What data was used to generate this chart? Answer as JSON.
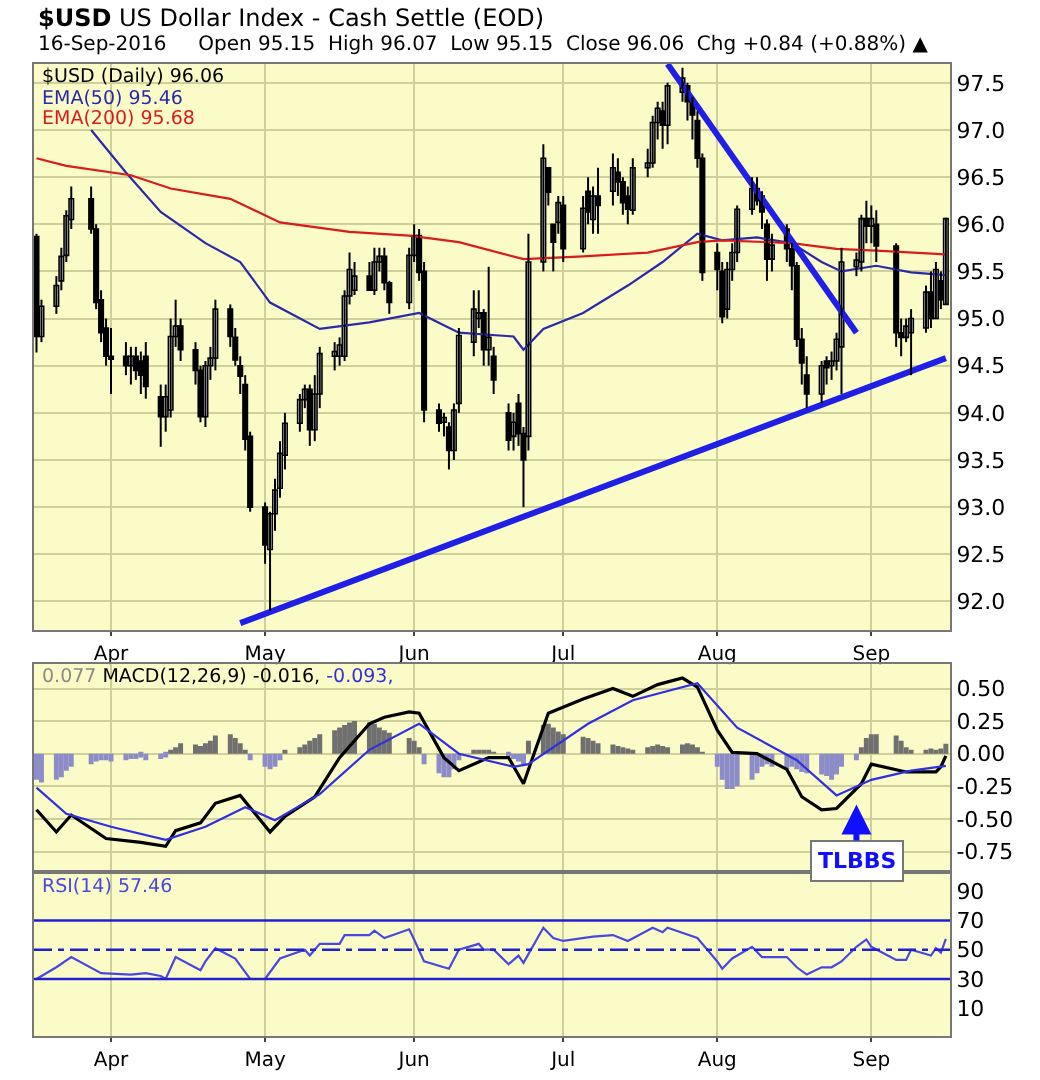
{
  "chart_data": [
    {
      "type": "candlestick",
      "title": "$USD US Dollar Index - Cash Settle (EOD)",
      "subtitle": "16-Sep-2016     Open 95.15  High 96.07  Low 95.15  Close 96.06  Chg +0.84 (+0.88%) ▲",
      "x": [
        "2016-03-17",
        "2016-03-18",
        "2016-03-21",
        "2016-03-22",
        "2016-03-23",
        "2016-03-24",
        "2016-03-28",
        "2016-03-29",
        "2016-03-30",
        "2016-03-31",
        "2016-04-01",
        "2016-04-04",
        "2016-04-05",
        "2016-04-06",
        "2016-04-07",
        "2016-04-08",
        "2016-04-11",
        "2016-04-12",
        "2016-04-13",
        "2016-04-14",
        "2016-04-15",
        "2016-04-18",
        "2016-04-19",
        "2016-04-20",
        "2016-04-21",
        "2016-04-22",
        "2016-04-25",
        "2016-04-26",
        "2016-04-27",
        "2016-04-28",
        "2016-04-29",
        "2016-05-02",
        "2016-05-03",
        "2016-05-04",
        "2016-05-05",
        "2016-05-06",
        "2016-05-09",
        "2016-05-10",
        "2016-05-11",
        "2016-05-12",
        "2016-05-13",
        "2016-05-16",
        "2016-05-17",
        "2016-05-18",
        "2016-05-19",
        "2016-05-20",
        "2016-05-23",
        "2016-05-24",
        "2016-05-25",
        "2016-05-26",
        "2016-05-27",
        "2016-05-31",
        "2016-06-01",
        "2016-06-02",
        "2016-06-03",
        "2016-06-06",
        "2016-06-07",
        "2016-06-08",
        "2016-06-09",
        "2016-06-10",
        "2016-06-13",
        "2016-06-14",
        "2016-06-15",
        "2016-06-16",
        "2016-06-17",
        "2016-06-20",
        "2016-06-21",
        "2016-06-22",
        "2016-06-23",
        "2016-06-24",
        "2016-06-27",
        "2016-06-28",
        "2016-06-29",
        "2016-06-30",
        "2016-07-01",
        "2016-07-05",
        "2016-07-06",
        "2016-07-07",
        "2016-07-08",
        "2016-07-11",
        "2016-07-12",
        "2016-07-13",
        "2016-07-14",
        "2016-07-15",
        "2016-07-18",
        "2016-07-19",
        "2016-07-20",
        "2016-07-21",
        "2016-07-22",
        "2016-07-25",
        "2016-07-26",
        "2016-07-27",
        "2016-07-28",
        "2016-07-29",
        "2016-08-01",
        "2016-08-02",
        "2016-08-03",
        "2016-08-04",
        "2016-08-05",
        "2016-08-08",
        "2016-08-09",
        "2016-08-10",
        "2016-08-11",
        "2016-08-12",
        "2016-08-15",
        "2016-08-16",
        "2016-08-17",
        "2016-08-18",
        "2016-08-19",
        "2016-08-22",
        "2016-08-23",
        "2016-08-24",
        "2016-08-25",
        "2016-08-26",
        "2016-08-29",
        "2016-08-30",
        "2016-08-31",
        "2016-09-01",
        "2016-09-02",
        "2016-09-06",
        "2016-09-07",
        "2016-09-08",
        "2016-09-09",
        "2016-09-12",
        "2016-09-13",
        "2016-09-14",
        "2016-09-15",
        "2016-09-16"
      ],
      "series": [
        {
          "type": "candlestick",
          "name": "$USD (Daily) 96.06",
          "color": "#000000",
          "ohlc": [
            [
              95.87,
              95.9,
              94.64,
              94.81
            ],
            [
              94.81,
              95.2,
              94.75,
              95.13
            ],
            [
              95.13,
              95.45,
              95.05,
              95.35
            ],
            [
              95.4,
              95.75,
              95.3,
              95.66
            ],
            [
              95.67,
              96.15,
              95.6,
              96.09
            ],
            [
              96.05,
              96.4,
              95.95,
              96.27
            ],
            [
              96.27,
              96.4,
              95.9,
              95.95
            ],
            [
              95.95,
              96.0,
              95.1,
              95.17
            ],
            [
              95.2,
              95.3,
              94.75,
              94.85
            ],
            [
              94.9,
              95.0,
              94.5,
              94.6
            ],
            [
              94.6,
              94.9,
              94.2,
              94.57
            ],
            [
              94.6,
              94.75,
              94.4,
              94.5
            ],
            [
              94.5,
              94.7,
              94.3,
              94.6
            ],
            [
              94.6,
              94.7,
              94.35,
              94.45
            ],
            [
              94.55,
              94.65,
              94.2,
              94.4
            ],
            [
              94.6,
              94.75,
              94.15,
              94.28
            ],
            [
              94.17,
              94.3,
              93.64,
              93.96
            ],
            [
              93.96,
              94.3,
              93.8,
              94.17
            ],
            [
              94.03,
              95.0,
              93.95,
              94.81
            ],
            [
              94.81,
              95.2,
              94.7,
              94.92
            ],
            [
              94.92,
              95.0,
              94.55,
              94.67
            ],
            [
              94.67,
              94.75,
              94.3,
              94.45
            ],
            [
              94.45,
              94.5,
              93.9,
              93.96
            ],
            [
              93.96,
              94.55,
              93.85,
              94.5
            ],
            [
              94.5,
              94.7,
              94.35,
              94.58
            ],
            [
              94.58,
              95.2,
              94.45,
              95.1
            ],
            [
              95.1,
              95.15,
              94.7,
              94.81
            ],
            [
              94.8,
              94.9,
              94.5,
              94.56
            ],
            [
              94.5,
              94.6,
              94.2,
              94.39
            ],
            [
              94.3,
              94.4,
              93.6,
              93.72
            ],
            [
              93.75,
              93.8,
              92.95,
              93.0
            ],
            [
              93.0,
              93.05,
              92.4,
              92.6
            ],
            [
              92.55,
              92.95,
              91.9,
              92.93
            ],
            [
              92.93,
              93.3,
              92.75,
              93.18
            ],
            [
              93.2,
              93.7,
              93.1,
              93.57
            ],
            [
              93.55,
              94.0,
              93.4,
              93.89
            ],
            [
              93.89,
              94.2,
              93.8,
              94.14
            ],
            [
              94.14,
              94.3,
              94.05,
              94.25
            ],
            [
              94.25,
              94.3,
              93.65,
              93.82
            ],
            [
              93.82,
              94.4,
              93.7,
              94.2
            ],
            [
              94.2,
              94.7,
              94.05,
              94.63
            ],
            [
              94.6,
              94.75,
              94.45,
              94.65
            ],
            [
              94.6,
              94.8,
              94.5,
              94.72
            ],
            [
              94.6,
              95.3,
              94.55,
              95.24
            ],
            [
              95.24,
              95.7,
              95.15,
              95.52
            ],
            [
              95.3,
              95.6,
              95.25,
              95.45
            ],
            [
              95.45,
              95.6,
              95.3,
              95.3
            ],
            [
              95.3,
              95.75,
              95.25,
              95.6
            ],
            [
              95.6,
              95.75,
              95.5,
              95.66
            ],
            [
              95.66,
              95.75,
              95.3,
              95.38
            ],
            [
              95.38,
              95.4,
              95.05,
              95.17
            ],
            [
              95.17,
              95.75,
              95.1,
              95.67
            ],
            [
              95.67,
              96.0,
              95.6,
              95.88
            ],
            [
              95.88,
              95.95,
              95.4,
              95.49
            ],
            [
              95.5,
              95.6,
              93.9,
              94.03
            ],
            [
              94.03,
              94.1,
              93.8,
              93.89
            ],
            [
              93.9,
              94.0,
              93.75,
              93.95
            ],
            [
              93.85,
              93.9,
              93.4,
              93.6
            ],
            [
              93.6,
              94.1,
              93.5,
              94.03
            ],
            [
              94.1,
              94.9,
              94.0,
              94.82
            ],
            [
              94.75,
              95.3,
              94.6,
              95.1
            ],
            [
              95.0,
              95.3,
              94.9,
              95.06
            ],
            [
              95.06,
              95.1,
              94.5,
              94.67
            ],
            [
              94.67,
              95.55,
              94.5,
              94.8
            ],
            [
              94.6,
              94.7,
              94.2,
              94.35
            ],
            [
              94.0,
              94.1,
              93.6,
              93.71
            ],
            [
              93.75,
              94.0,
              93.6,
              93.9
            ],
            [
              94.1,
              94.2,
              93.65,
              93.78
            ],
            [
              93.78,
              93.85,
              93.0,
              93.5
            ],
            [
              93.75,
              95.9,
              93.6,
              95.6
            ],
            [
              95.6,
              96.85,
              95.5,
              96.7
            ],
            [
              96.6,
              96.6,
              96.2,
              96.34
            ],
            [
              96.0,
              96.0,
              95.5,
              95.81
            ],
            [
              96.02,
              96.3,
              95.9,
              96.23
            ],
            [
              96.2,
              96.3,
              95.6,
              95.74
            ],
            [
              95.74,
              96.3,
              95.7,
              96.17
            ],
            [
              96.35,
              96.5,
              96.0,
              96.13
            ],
            [
              96.05,
              96.4,
              95.9,
              96.3
            ],
            [
              96.3,
              96.6,
              95.9,
              96.2
            ],
            [
              96.35,
              96.75,
              96.2,
              96.6
            ],
            [
              96.55,
              96.7,
              96.3,
              96.45
            ],
            [
              96.45,
              96.5,
              96.1,
              96.23
            ],
            [
              96.3,
              96.4,
              96.0,
              96.16
            ],
            [
              96.15,
              96.7,
              96.1,
              96.6
            ],
            [
              96.6,
              96.8,
              96.5,
              96.65
            ],
            [
              96.65,
              97.15,
              96.6,
              97.08
            ],
            [
              97.08,
              97.3,
              96.9,
              97.23
            ],
            [
              97.2,
              97.3,
              96.8,
              97.05
            ],
            [
              97.05,
              97.5,
              96.85,
              97.47
            ],
            [
              97.4,
              97.66,
              97.3,
              97.55
            ],
            [
              97.47,
              97.5,
              97.1,
              97.3
            ],
            [
              97.3,
              97.35,
              96.9,
              97.16
            ],
            [
              97.1,
              97.2,
              96.6,
              96.7
            ],
            [
              96.7,
              96.75,
              95.4,
              95.49
            ],
            [
              95.7,
              95.8,
              95.3,
              95.52
            ],
            [
              95.5,
              95.6,
              94.95,
              95.02
            ],
            [
              95.1,
              95.6,
              95.0,
              95.52
            ],
            [
              95.52,
              95.8,
              95.4,
              95.7
            ],
            [
              95.7,
              96.2,
              95.6,
              96.16
            ],
            [
              96.16,
              96.5,
              96.1,
              96.38
            ],
            [
              96.38,
              96.5,
              96.2,
              96.25
            ],
            [
              96.3,
              96.35,
              95.95,
              96.13
            ],
            [
              96.0,
              96.05,
              95.4,
              95.63
            ],
            [
              95.63,
              95.9,
              95.5,
              95.78
            ],
            [
              95.95,
              96.0,
              95.6,
              95.74
            ],
            [
              95.74,
              95.8,
              95.3,
              95.56
            ],
            [
              95.56,
              95.6,
              94.7,
              94.78
            ],
            [
              94.78,
              94.9,
              94.3,
              94.53
            ],
            [
              94.4,
              94.6,
              94.05,
              94.2
            ],
            [
              94.2,
              94.55,
              94.1,
              94.5
            ],
            [
              94.55,
              94.6,
              94.3,
              94.48
            ],
            [
              94.5,
              94.65,
              94.35,
              94.55
            ],
            [
              94.55,
              94.85,
              94.45,
              94.78
            ],
            [
              94.7,
              95.75,
              94.2,
              95.6
            ],
            [
              95.55,
              95.7,
              95.45,
              95.62
            ],
            [
              95.6,
              96.1,
              95.5,
              96.06
            ],
            [
              96.06,
              96.25,
              95.8,
              95.98
            ],
            [
              95.98,
              96.2,
              95.8,
              96.06
            ],
            [
              96.0,
              96.15,
              95.6,
              95.77
            ],
            [
              95.77,
              95.8,
              94.7,
              94.85
            ],
            [
              94.85,
              95.0,
              94.6,
              94.8
            ],
            [
              94.8,
              95.0,
              94.75,
              94.92
            ],
            [
              94.85,
              95.1,
              94.4,
              95.0
            ],
            [
              94.9,
              95.35,
              94.85,
              95.28
            ],
            [
              95.28,
              95.5,
              94.9,
              95.0
            ],
            [
              95.0,
              95.6,
              95.0,
              95.52
            ],
            [
              95.4,
              95.5,
              95.1,
              95.2
            ],
            [
              95.15,
              96.07,
              95.15,
              96.06
            ]
          ]
        },
        {
          "type": "line",
          "name": "EMA(50) 95.46",
          "color": "#2a2aa8",
          "x": [
            "2016-03-28",
            "2016-04-04",
            "2016-04-11",
            "2016-04-20",
            "2016-04-27",
            "2016-05-03",
            "2016-05-13",
            "2016-05-23",
            "2016-06-02",
            "2016-06-10",
            "2016-06-21",
            "2016-06-23",
            "2016-06-27",
            "2016-07-05",
            "2016-07-14",
            "2016-07-21",
            "2016-07-28",
            "2016-08-02",
            "2016-08-09",
            "2016-08-16",
            "2016-08-22",
            "2016-08-26",
            "2016-09-02",
            "2016-09-09",
            "2016-09-16"
          ],
          "values": [
            97.0,
            96.55,
            96.13,
            95.8,
            95.6,
            95.17,
            94.89,
            94.96,
            95.06,
            94.85,
            94.81,
            94.67,
            94.89,
            95.06,
            95.35,
            95.6,
            95.9,
            95.83,
            95.86,
            95.8,
            95.6,
            95.5,
            95.56,
            95.49,
            95.46
          ]
        },
        {
          "type": "line",
          "name": "EMA(200) 95.68",
          "color": "#d81c1c",
          "x": [
            "2016-03-17",
            "2016-03-23",
            "2016-04-05",
            "2016-04-13",
            "2016-04-25",
            "2016-05-05",
            "2016-05-19",
            "2016-05-31",
            "2016-06-10",
            "2016-06-23",
            "2016-07-05",
            "2016-07-18",
            "2016-07-28",
            "2016-08-02",
            "2016-08-16",
            "2016-08-25",
            "2016-09-02",
            "2016-09-16"
          ],
          "values": [
            96.7,
            96.62,
            96.52,
            96.38,
            96.27,
            96.02,
            95.92,
            95.88,
            95.81,
            95.63,
            95.66,
            95.7,
            95.81,
            95.83,
            95.8,
            95.74,
            95.72,
            95.68
          ]
        },
        {
          "type": "line",
          "color": "#1f1fe6",
          "x": [
            "2016-04-27",
            "2016-09-16"
          ],
          "values": [
            91.77,
            94.58
          ]
        },
        {
          "type": "line",
          "color": "#1f1fe6",
          "x": [
            "2016-07-22",
            "2016-08-29"
          ],
          "values": [
            97.7,
            94.85
          ]
        }
      ],
      "xlim": [
        "2016-03-16T12:00",
        "2016-09-16T20:00"
      ],
      "xticks": [
        {
          "value": "2016-04-01",
          "label": "Apr"
        },
        {
          "value": "2016-05-02",
          "label": "May"
        },
        {
          "value": "2016-06-01",
          "label": "Jun"
        },
        {
          "value": "2016-07-01",
          "label": "Jul"
        },
        {
          "value": "2016-08-01",
          "label": "Aug"
        },
        {
          "value": "2016-09-01",
          "label": "Sep"
        }
      ],
      "ylim": [
        91.7,
        97.7
      ],
      "yticks": [
        {
          "value": 92,
          "label": "92.0"
        },
        {
          "value": 92.5,
          "label": "92.5"
        },
        {
          "value": 93,
          "label": "93.0"
        },
        {
          "value": 93.5,
          "label": "93.5"
        },
        {
          "value": 94,
          "label": "94.0"
        },
        {
          "value": 94.5,
          "label": "94.5"
        },
        {
          "value": 95,
          "label": "95.0"
        },
        {
          "value": 95.5,
          "label": "95.5"
        },
        {
          "value": 96,
          "label": "96.0"
        },
        {
          "value": 96.5,
          "label": "96.5"
        },
        {
          "value": 97,
          "label": "97.0"
        },
        {
          "value": 97.5,
          "label": "97.5"
        }
      ],
      "grid": true
    },
    {
      "type": "line",
      "series": [
        {
          "type": "bar",
          "name": "0.077",
          "color": "#8a8a8a",
          "x": [
            "2016-03-17",
            "2016-03-18",
            "2016-03-21",
            "2016-03-22",
            "2016-03-23",
            "2016-03-24",
            "2016-03-28",
            "2016-03-29",
            "2016-03-30",
            "2016-03-31",
            "2016-04-01",
            "2016-04-04",
            "2016-04-05",
            "2016-04-06",
            "2016-04-07",
            "2016-04-08",
            "2016-04-11",
            "2016-04-12",
            "2016-04-13",
            "2016-04-14",
            "2016-04-15",
            "2016-04-18",
            "2016-04-19",
            "2016-04-20",
            "2016-04-21",
            "2016-04-22",
            "2016-04-25",
            "2016-04-26",
            "2016-04-27",
            "2016-04-28",
            "2016-04-29",
            "2016-05-02",
            "2016-05-03",
            "2016-05-04",
            "2016-05-05",
            "2016-05-06",
            "2016-05-09",
            "2016-05-10",
            "2016-05-11",
            "2016-05-12",
            "2016-05-13",
            "2016-05-16",
            "2016-05-17",
            "2016-05-18",
            "2016-05-19",
            "2016-05-20",
            "2016-05-23",
            "2016-05-24",
            "2016-05-25",
            "2016-05-26",
            "2016-05-27",
            "2016-05-31",
            "2016-06-01",
            "2016-06-02",
            "2016-06-03",
            "2016-06-06",
            "2016-06-07",
            "2016-06-08",
            "2016-06-09",
            "2016-06-10",
            "2016-06-13",
            "2016-06-14",
            "2016-06-15",
            "2016-06-16",
            "2016-06-17",
            "2016-06-20",
            "2016-06-21",
            "2016-06-22",
            "2016-06-23",
            "2016-06-24",
            "2016-06-27",
            "2016-06-28",
            "2016-06-29",
            "2016-06-30",
            "2016-07-01",
            "2016-07-05",
            "2016-07-06",
            "2016-07-07",
            "2016-07-08",
            "2016-07-11",
            "2016-07-12",
            "2016-07-13",
            "2016-07-14",
            "2016-07-15",
            "2016-07-18",
            "2016-07-19",
            "2016-07-20",
            "2016-07-21",
            "2016-07-22",
            "2016-07-25",
            "2016-07-26",
            "2016-07-27",
            "2016-07-28",
            "2016-07-29",
            "2016-08-01",
            "2016-08-02",
            "2016-08-03",
            "2016-08-04",
            "2016-08-05",
            "2016-08-08",
            "2016-08-09",
            "2016-08-10",
            "2016-08-11",
            "2016-08-12",
            "2016-08-15",
            "2016-08-16",
            "2016-08-17",
            "2016-08-18",
            "2016-08-19",
            "2016-08-22",
            "2016-08-23",
            "2016-08-24",
            "2016-08-25",
            "2016-08-26",
            "2016-08-29",
            "2016-08-30",
            "2016-08-31",
            "2016-09-01",
            "2016-09-02",
            "2016-09-06",
            "2016-09-07",
            "2016-09-08",
            "2016-09-09",
            "2016-09-12",
            "2016-09-13",
            "2016-09-14",
            "2016-09-15",
            "2016-09-16"
          ],
          "values": [
            -0.2,
            -0.22,
            -0.2,
            -0.18,
            -0.13,
            -0.1,
            -0.08,
            -0.06,
            -0.05,
            -0.05,
            -0.06,
            -0.05,
            -0.04,
            -0.04,
            -0.03,
            -0.05,
            -0.04,
            -0.03,
            0.02,
            0.05,
            0.08,
            0.07,
            0.06,
            0.08,
            0.1,
            0.14,
            0.15,
            0.12,
            0.08,
            0.03,
            -0.05,
            -0.1,
            -0.12,
            -0.1,
            -0.05,
            0.02,
            0.05,
            0.07,
            0.1,
            0.12,
            0.15,
            0.18,
            0.2,
            0.22,
            0.24,
            0.25,
            0.24,
            0.23,
            0.2,
            0.18,
            0.16,
            0.12,
            0.1,
            0.05,
            -0.08,
            -0.15,
            -0.18,
            -0.18,
            -0.12,
            -0.05,
            0.02,
            0.03,
            0.03,
            0.02,
            0.01,
            -0.02,
            -0.04,
            -0.06,
            -0.08,
            0.1,
            0.22,
            0.23,
            0.2,
            0.17,
            0.15,
            0.13,
            0.12,
            0.1,
            0.08,
            0.07,
            0.06,
            0.05,
            0.04,
            0.03,
            0.05,
            0.06,
            0.07,
            0.06,
            0.05,
            0.07,
            0.08,
            0.07,
            0.05,
            0.01,
            -0.1,
            -0.2,
            -0.27,
            -0.27,
            -0.25,
            -0.2,
            -0.15,
            -0.1,
            -0.08,
            -0.1,
            -0.12,
            -0.1,
            -0.12,
            -0.14,
            -0.15,
            -0.16,
            -0.17,
            -0.2,
            -0.16,
            -0.1,
            -0.05,
            0.05,
            0.12,
            0.15,
            0.15,
            0.14,
            0.1,
            0.05,
            0.03,
            0.03,
            0.04,
            0.03,
            0.04,
            0.077
          ],
          "colors": [
            "#8c8cc8",
            "#8c8cc8",
            "#8c8cc8",
            "#8c8cc8",
            "#8c8cc8",
            "#8c8cc8",
            "#8c8cc8",
            "#8c8cc8",
            "#8c8cc8",
            "#8c8cc8",
            "#8c8cc8",
            "#8c8cc8",
            "#8c8cc8",
            "#8c8cc8",
            "#8c8cc8",
            "#8c8cc8",
            "#8c8cc8",
            "#8c8cc8",
            "#707070",
            "#707070",
            "#707070",
            "#707070",
            "#707070",
            "#707070",
            "#707070",
            "#707070",
            "#707070",
            "#707070",
            "#707070",
            "#707070",
            "#8c8cc8",
            "#8c8cc8",
            "#8c8cc8",
            "#8c8cc8",
            "#8c8cc8",
            "#707070",
            "#707070",
            "#707070",
            "#707070",
            "#707070",
            "#707070",
            "#707070",
            "#707070",
            "#707070",
            "#707070",
            "#707070",
            "#707070",
            "#707070",
            "#707070",
            "#707070",
            "#707070",
            "#707070",
            "#707070",
            "#707070",
            "#8c8cc8",
            "#8c8cc8",
            "#8c8cc8",
            "#8c8cc8",
            "#8c8cc8",
            "#8c8cc8",
            "#707070",
            "#707070",
            "#707070",
            "#707070",
            "#707070",
            "#8c8cc8",
            "#8c8cc8",
            "#8c8cc8",
            "#8c8cc8",
            "#707070",
            "#707070",
            "#707070",
            "#707070",
            "#707070",
            "#707070",
            "#707070",
            "#707070",
            "#707070",
            "#707070",
            "#707070",
            "#707070",
            "#707070",
            "#707070",
            "#707070",
            "#707070",
            "#707070",
            "#707070",
            "#707070",
            "#707070",
            "#707070",
            "#707070",
            "#707070",
            "#707070",
            "#707070",
            "#8c8cc8",
            "#8c8cc8",
            "#8c8cc8",
            "#8c8cc8",
            "#8c8cc8",
            "#8c8cc8",
            "#8c8cc8",
            "#8c8cc8",
            "#8c8cc8",
            "#8c8cc8",
            "#8c8cc8",
            "#8c8cc8",
            "#8c8cc8",
            "#8c8cc8",
            "#8c8cc8",
            "#8c8cc8",
            "#8c8cc8",
            "#8c8cc8",
            "#8c8cc8",
            "#8c8cc8",
            "#8c8cc8",
            "#707070",
            "#707070",
            "#707070",
            "#707070",
            "#707070",
            "#707070",
            "#707070",
            "#707070",
            "#707070",
            "#707070",
            "#707070",
            "#707070",
            "#707070"
          ]
        },
        {
          "type": "line",
          "name": "MACD(12,26,9) -0.016,",
          "color": "#000000",
          "x": [
            "2016-03-17",
            "2016-03-21",
            "2016-03-24",
            "2016-03-31",
            "2016-04-07",
            "2016-04-12",
            "2016-04-14",
            "2016-04-19",
            "2016-04-22",
            "2016-04-27",
            "2016-05-03",
            "2016-05-06",
            "2016-05-12",
            "2016-05-17",
            "2016-05-23",
            "2016-05-26",
            "2016-05-31",
            "2016-06-02",
            "2016-06-07",
            "2016-06-10",
            "2016-06-16",
            "2016-06-20",
            "2016-06-23",
            "2016-06-28",
            "2016-07-05",
            "2016-07-11",
            "2016-07-15",
            "2016-07-20",
            "2016-07-25",
            "2016-07-28",
            "2016-08-01",
            "2016-08-04",
            "2016-08-09",
            "2016-08-15",
            "2016-08-18",
            "2016-08-22",
            "2016-08-25",
            "2016-08-30",
            "2016-09-01",
            "2016-09-08",
            "2016-09-14",
            "2016-09-15",
            "2016-09-16"
          ],
          "values": [
            -0.43,
            -0.6,
            -0.47,
            -0.65,
            -0.68,
            -0.71,
            -0.59,
            -0.53,
            -0.38,
            -0.32,
            -0.6,
            -0.48,
            -0.33,
            -0.03,
            0.23,
            0.28,
            0.32,
            0.31,
            -0.03,
            -0.13,
            -0.03,
            -0.03,
            -0.23,
            0.31,
            0.42,
            0.5,
            0.44,
            0.53,
            0.58,
            0.51,
            0.18,
            0.01,
            0.0,
            -0.12,
            -0.33,
            -0.43,
            -0.42,
            -0.23,
            -0.08,
            -0.14,
            -0.14,
            -0.1,
            -0.016
          ]
        },
        {
          "type": "line",
          "name": "-0.093,",
          "color": "#3030e0",
          "x": [
            "2016-03-17",
            "2016-03-23",
            "2016-04-01",
            "2016-04-12",
            "2016-04-20",
            "2016-04-28",
            "2016-05-04",
            "2016-05-13",
            "2016-05-23",
            "2016-06-02",
            "2016-06-10",
            "2016-06-21",
            "2016-06-24",
            "2016-07-06",
            "2016-07-15",
            "2016-07-28",
            "2016-08-05",
            "2016-08-17",
            "2016-08-25",
            "2016-09-01",
            "2016-09-09",
            "2016-09-16"
          ],
          "values": [
            -0.26,
            -0.46,
            -0.56,
            -0.66,
            -0.56,
            -0.41,
            -0.51,
            -0.31,
            0.03,
            0.23,
            0.0,
            -0.1,
            -0.08,
            0.23,
            0.41,
            0.54,
            0.2,
            -0.05,
            -0.32,
            -0.2,
            -0.13,
            -0.093
          ]
        }
      ],
      "annotations": [
        {
          "text": "TLBBS",
          "x": "2016-08-29",
          "y": -0.39
        }
      ],
      "xlim": [
        "2016-03-16T12:00",
        "2016-09-16T20:00"
      ],
      "xticks": [
        {
          "value": "2016-04-01",
          "label": null
        },
        {
          "value": "2016-05-02",
          "label": null
        },
        {
          "value": "2016-06-01",
          "label": null
        },
        {
          "value": "2016-07-01",
          "label": null
        },
        {
          "value": "2016-08-01",
          "label": null
        },
        {
          "value": "2016-09-01",
          "label": null
        }
      ],
      "ylim": [
        -0.89,
        0.69
      ],
      "yticks": [
        {
          "value": -0.75,
          "label": "-0.75"
        },
        {
          "value": -0.5,
          "label": "-0.50"
        },
        {
          "value": -0.25,
          "label": "-0.25"
        },
        {
          "value": 0,
          "label": "0.00"
        },
        {
          "value": 0.25,
          "label": "0.25"
        },
        {
          "value": 0.5,
          "label": "0.50"
        }
      ],
      "tick_labels": "y",
      "grid": true
    },
    {
      "type": "line",
      "series": [
        {
          "name": "RSI(14) 57.46",
          "color": "#4848e0",
          "x": [
            "2016-03-17",
            "2016-03-21",
            "2016-03-24",
            "2016-03-30",
            "2016-04-05",
            "2016-04-08",
            "2016-04-11",
            "2016-04-12",
            "2016-04-14",
            "2016-04-19",
            "2016-04-20",
            "2016-04-22",
            "2016-04-26",
            "2016-04-29",
            "2016-05-02",
            "2016-05-05",
            "2016-05-10",
            "2016-05-11",
            "2016-05-13",
            "2016-05-17",
            "2016-05-18",
            "2016-05-23",
            "2016-05-24",
            "2016-05-26",
            "2016-05-31",
            "2016-06-01",
            "2016-06-03",
            "2016-06-08",
            "2016-06-10",
            "2016-06-14",
            "2016-06-15",
            "2016-06-17",
            "2016-06-20",
            "2016-06-22",
            "2016-06-23",
            "2016-06-27",
            "2016-06-29",
            "2016-07-01",
            "2016-07-07",
            "2016-07-11",
            "2016-07-14",
            "2016-07-19",
            "2016-07-21",
            "2016-07-22",
            "2016-07-28",
            "2016-08-01",
            "2016-08-02",
            "2016-08-04",
            "2016-08-08",
            "2016-08-10",
            "2016-08-15",
            "2016-08-17",
            "2016-08-19",
            "2016-08-22",
            "2016-08-24",
            "2016-08-26",
            "2016-08-29",
            "2016-08-31",
            "2016-09-01",
            "2016-09-06",
            "2016-09-08",
            "2016-09-09",
            "2016-09-13",
            "2016-09-14",
            "2016-09-15",
            "2016-09-16"
          ],
          "values": [
            30,
            38,
            45,
            34,
            33,
            34,
            32,
            30,
            45,
            36,
            42,
            51,
            44,
            30,
            30,
            44,
            50,
            46,
            54,
            54,
            60,
            60,
            63,
            58,
            64,
            57,
            42,
            37,
            50,
            54,
            50,
            50,
            40,
            46,
            41,
            65,
            58,
            56,
            59,
            60,
            56,
            65,
            62,
            65,
            58,
            42,
            37,
            44,
            52,
            45,
            45,
            38,
            33,
            38,
            38,
            42,
            52,
            57,
            52,
            43,
            43,
            50,
            46,
            51,
            48,
            57.46
          ]
        }
      ],
      "ref_lines": [
        {
          "axis": "y",
          "value": 70,
          "color": "#2020d0",
          "line_style": "solid"
        },
        {
          "axis": "y",
          "value": 50,
          "color": "#2020d0",
          "line_style": "dashed"
        },
        {
          "axis": "y",
          "value": 30,
          "color": "#2020d0",
          "line_style": "solid"
        }
      ],
      "xlim": [
        "2016-03-16T12:00",
        "2016-09-16T20:00"
      ],
      "xticks": [
        {
          "value": "2016-04-01",
          "label": "Apr"
        },
        {
          "value": "2016-05-02",
          "label": "May"
        },
        {
          "value": "2016-06-01",
          "label": "Jun"
        },
        {
          "value": "2016-07-01",
          "label": "Jul"
        },
        {
          "value": "2016-08-01",
          "label": "Aug"
        },
        {
          "value": "2016-09-01",
          "label": "Sep"
        }
      ],
      "ylim": [
        -9,
        102
      ],
      "yticks": [
        10,
        30,
        50,
        70,
        90
      ],
      "grid": "x"
    }
  ]
}
